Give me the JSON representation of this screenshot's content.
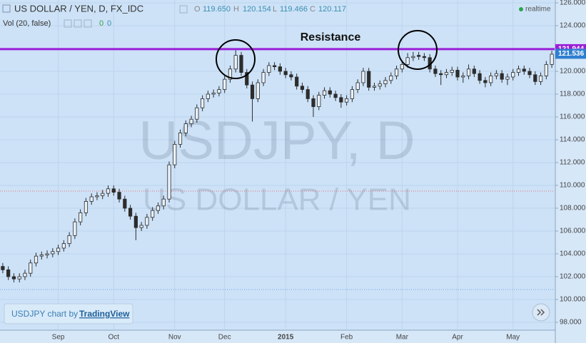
{
  "chart_data": {
    "type": "candlestick",
    "legend_header": {
      "symbol": "US DOLLAR / YEN, D, FX_IDC",
      "ohlc": [
        {
          "key": "O",
          "value": "119.650"
        },
        {
          "key": "H",
          "value": "120.154"
        },
        {
          "key": "L",
          "value": "119.466"
        },
        {
          "key": "C",
          "value": "120.117"
        }
      ],
      "indicator": "Vol (20, false)",
      "indicator_values": [
        "0",
        "0"
      ],
      "status": "realtime"
    },
    "watermark": [
      "USDJPY, D",
      "US DOLLAR / YEN"
    ],
    "annotation": "Resistance",
    "credit": {
      "text": "USDJPY chart by",
      "link": "TradingView"
    },
    "resistance": {
      "value": 121.944,
      "label": "121.944",
      "color": "#9a1fd8"
    },
    "last_price": {
      "value": 121.536,
      "label": "121.536",
      "color": "#2f7fd0"
    },
    "reference_lines": [
      {
        "value": 109.5,
        "color": "#e07070"
      },
      {
        "value": 100.87,
        "color": "#6aa8e0"
      }
    ],
    "up_color": "#e9f1fa",
    "down_color": "#2c2c2c",
    "wick_color": "#2c2c2c",
    "grid": true,
    "categories": [
      null,
      null,
      null,
      null,
      null,
      null,
      null,
      null,
      null,
      null,
      "Sep",
      null,
      null,
      null,
      null,
      null,
      null,
      null,
      null,
      null,
      "Oct",
      null,
      null,
      null,
      null,
      null,
      null,
      null,
      null,
      null,
      null,
      "Nov",
      null,
      null,
      null,
      null,
      null,
      null,
      null,
      null,
      "Dec",
      null,
      null,
      null,
      null,
      null,
      null,
      null,
      null,
      null,
      null,
      "2015",
      null,
      null,
      null,
      null,
      null,
      null,
      null,
      null,
      null,
      null,
      "Feb",
      null,
      null,
      null,
      null,
      null,
      null,
      null,
      null,
      null,
      "Mar",
      null,
      null,
      null,
      null,
      null,
      null,
      null,
      null,
      null,
      "Apr",
      null,
      null,
      null,
      null,
      null,
      null,
      null,
      null,
      null,
      "May",
      null,
      null,
      null,
      null,
      null,
      null,
      null
    ],
    "open": [
      102.9,
      102.6,
      102.0,
      101.8,
      102.0,
      102.3,
      103.2,
      103.8,
      103.9,
      104.0,
      104.2,
      104.5,
      104.9,
      105.6,
      106.8,
      107.6,
      108.6,
      109.0,
      109.1,
      109.3,
      109.7,
      109.4,
      108.8,
      108.0,
      107.3,
      106.3,
      106.5,
      107.2,
      107.8,
      108.2,
      108.8,
      111.8,
      113.6,
      114.6,
      115.4,
      115.8,
      116.8,
      117.6,
      118.0,
      118.1,
      118.4,
      119.3,
      120.2,
      121.4,
      119.9,
      118.8,
      117.6,
      119.0,
      119.9,
      120.5,
      120.4,
      120.0,
      119.7,
      119.5,
      118.7,
      118.4,
      117.6,
      116.9,
      117.9,
      118.3,
      118.0,
      117.7,
      117.3,
      117.6,
      118.4,
      119.0,
      120.0,
      118.6,
      118.7,
      118.9,
      119.2,
      119.6,
      120.2,
      120.6,
      121.2,
      121.4,
      121.3,
      121.2,
      120.2,
      119.8,
      119.7,
      119.9,
      120.1,
      119.5,
      119.6,
      120.2,
      119.8,
      119.2,
      119.0,
      119.6,
      119.8,
      119.3,
      119.5,
      119.9,
      120.2,
      120.0,
      119.7,
      119.1,
      119.6,
      120.6
    ],
    "high": [
      103.2,
      102.9,
      102.3,
      102.3,
      102.6,
      103.5,
      104.1,
      104.2,
      104.3,
      104.5,
      104.8,
      105.2,
      105.9,
      107.1,
      107.9,
      108.9,
      109.3,
      109.4,
      109.6,
      110.0,
      110.0,
      109.7,
      109.1,
      108.3,
      107.6,
      106.8,
      107.5,
      108.1,
      108.5,
      109.1,
      112.1,
      113.9,
      114.9,
      115.7,
      116.1,
      117.1,
      117.9,
      118.3,
      118.4,
      118.7,
      119.6,
      120.5,
      121.85,
      121.7,
      120.2,
      119.1,
      119.3,
      120.2,
      120.8,
      120.8,
      120.7,
      120.3,
      120.0,
      119.8,
      119.0,
      118.7,
      117.9,
      118.2,
      118.6,
      118.6,
      118.3,
      118.0,
      117.9,
      118.7,
      119.3,
      120.3,
      120.3,
      119.0,
      119.2,
      119.5,
      119.9,
      120.5,
      120.9,
      121.6,
      121.7,
      121.7,
      121.6,
      121.5,
      120.5,
      120.1,
      120.2,
      120.4,
      120.4,
      119.9,
      120.6,
      120.5,
      120.1,
      119.5,
      119.9,
      120.1,
      120.1,
      119.8,
      120.2,
      120.5,
      120.5,
      120.3,
      120.0,
      119.9,
      120.9,
      121.8
    ],
    "low": [
      102.3,
      101.7,
      101.5,
      101.5,
      101.7,
      102.0,
      102.9,
      103.5,
      103.6,
      103.7,
      103.9,
      104.2,
      104.6,
      105.3,
      106.5,
      107.3,
      108.3,
      108.7,
      108.8,
      109.0,
      109.1,
      108.5,
      107.7,
      107.0,
      105.2,
      106.0,
      106.2,
      106.9,
      107.5,
      107.9,
      108.5,
      111.5,
      113.3,
      114.3,
      115.1,
      115.5,
      116.5,
      117.3,
      117.7,
      117.8,
      118.1,
      119.0,
      119.9,
      119.6,
      118.5,
      115.6,
      117.3,
      118.7,
      119.6,
      120.1,
      119.7,
      119.4,
      119.2,
      118.4,
      118.1,
      117.3,
      116.0,
      116.6,
      117.6,
      117.7,
      117.4,
      116.8,
      117.0,
      117.3,
      118.1,
      118.7,
      118.3,
      118.3,
      118.4,
      118.6,
      118.9,
      119.3,
      119.9,
      120.3,
      120.9,
      121.0,
      120.9,
      119.9,
      119.5,
      118.8,
      119.4,
      119.6,
      119.2,
      119.0,
      119.3,
      119.5,
      118.9,
      118.6,
      118.7,
      119.3,
      119.0,
      118.8,
      119.2,
      119.6,
      119.7,
      119.4,
      118.8,
      118.8,
      119.3,
      120.3
    ],
    "close": [
      102.6,
      102.0,
      101.8,
      102.0,
      102.3,
      103.2,
      103.8,
      103.9,
      104.0,
      104.2,
      104.5,
      104.9,
      105.6,
      106.8,
      107.6,
      108.6,
      109.0,
      109.1,
      109.3,
      109.7,
      109.4,
      108.8,
      108.0,
      107.3,
      106.3,
      106.5,
      107.2,
      107.8,
      108.2,
      108.8,
      111.8,
      113.6,
      114.6,
      115.4,
      115.8,
      116.8,
      117.6,
      118.0,
      118.1,
      118.4,
      119.3,
      120.2,
      121.4,
      119.9,
      118.8,
      117.6,
      119.0,
      119.9,
      120.5,
      120.4,
      120.0,
      119.7,
      119.5,
      118.7,
      118.4,
      117.6,
      116.9,
      117.9,
      118.3,
      118.0,
      117.7,
      117.3,
      117.6,
      118.4,
      119.0,
      120.0,
      118.6,
      118.7,
      118.9,
      119.2,
      119.6,
      120.2,
      120.6,
      121.2,
      121.3,
      121.3,
      121.2,
      120.2,
      119.8,
      119.7,
      119.9,
      120.1,
      119.5,
      119.6,
      120.2,
      119.8,
      119.2,
      119.0,
      119.6,
      119.8,
      119.3,
      119.5,
      119.9,
      120.2,
      120.0,
      119.7,
      119.1,
      119.6,
      120.6,
      121.5
    ],
    "ylim": [
      97.31,
      126.25
    ],
    "yticks": [
      {
        "value": 98,
        "label": "98.000"
      },
      {
        "value": 100,
        "label": "100.000"
      },
      {
        "value": 102,
        "label": "102.000"
      },
      {
        "value": 104,
        "label": "104.000"
      },
      {
        "value": 106,
        "label": "106.000"
      },
      {
        "value": 108,
        "label": "108.000"
      },
      {
        "value": 110,
        "label": "110.000"
      },
      {
        "value": 112,
        "label": "112.000"
      },
      {
        "value": 114,
        "label": "114.000"
      },
      {
        "value": 116,
        "label": "116.000"
      },
      {
        "value": 118,
        "label": "118.000"
      },
      {
        "value": 120,
        "label": "120.000"
      },
      {
        "value": 122,
        "label": "122.000"
      },
      {
        "value": 124,
        "label": "124.000"
      },
      {
        "value": 126,
        "label": "126.000"
      }
    ]
  }
}
